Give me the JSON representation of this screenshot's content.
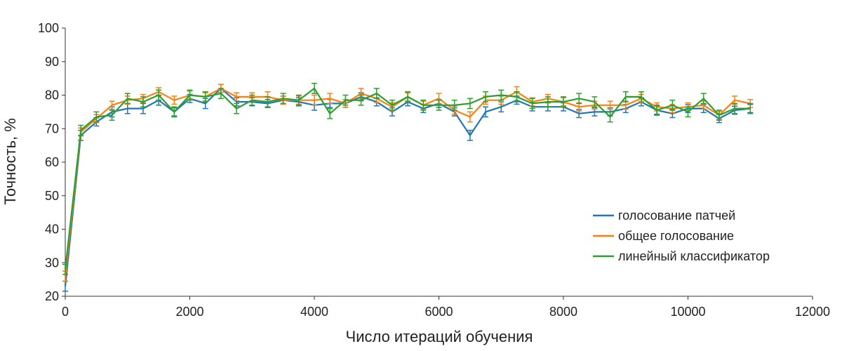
{
  "chart_data": {
    "type": "line",
    "title": "",
    "xlabel": "Число итераций обучения",
    "ylabel": "Точность, %",
    "xlim": [
      0,
      12000
    ],
    "ylim": [
      20,
      100
    ],
    "xticks": [
      0,
      2000,
      4000,
      6000,
      8000,
      10000,
      12000
    ],
    "yticks": [
      20,
      30,
      40,
      50,
      60,
      70,
      80,
      90,
      100
    ],
    "grid": false,
    "legend_position": "right",
    "error_bars": true,
    "x": [
      0,
      250,
      500,
      750,
      1000,
      1250,
      1500,
      1750,
      2000,
      2250,
      2500,
      2750,
      3000,
      3250,
      3500,
      3750,
      4000,
      4250,
      4500,
      4750,
      5000,
      5250,
      5500,
      5750,
      6000,
      6250,
      6500,
      6750,
      7000,
      7250,
      7500,
      7750,
      8000,
      8250,
      8500,
      8750,
      9000,
      9250,
      9500,
      9750,
      10000,
      10250,
      10500,
      10750,
      11000
    ],
    "series": [
      {
        "name": "голосование патчей",
        "color": "#1f77b4",
        "values": [
          23,
          68,
          72,
          75,
          76,
          76,
          78.5,
          75,
          79,
          77.5,
          82,
          78,
          78,
          77.5,
          78.5,
          78,
          77,
          77.5,
          77.5,
          79.5,
          78,
          75,
          78,
          76,
          77.5,
          75,
          68,
          75,
          76.5,
          78.5,
          76.5,
          76.5,
          76.5,
          74.5,
          75,
          75,
          76,
          78,
          75.5,
          74.5,
          76,
          76,
          73,
          75.5,
          76
        ],
        "errors": [
          1.5,
          1.5,
          1.2,
          1.5,
          1.5,
          1.5,
          1.5,
          1.2,
          1.2,
          1.5,
          1.2,
          1.2,
          1.2,
          1.2,
          1.2,
          1.2,
          1.5,
          1.2,
          1.2,
          1.2,
          1.2,
          1.2,
          1.2,
          1.2,
          1.2,
          1.2,
          1.5,
          1.5,
          1.5,
          1.2,
          1.2,
          1.2,
          1.2,
          1.2,
          1.2,
          1.2,
          1.2,
          1.2,
          1.2,
          1.2,
          1.2,
          1.2,
          1.2,
          1.2,
          1.2
        ]
      },
      {
        "name": "общее голосование",
        "color": "#ff7f0e",
        "values": [
          26,
          69,
          73,
          77,
          78.5,
          79,
          81,
          78.5,
          80,
          79.5,
          82,
          79.5,
          79.5,
          79.5,
          78.5,
          78.5,
          78.5,
          79,
          77.5,
          80.5,
          79,
          76.5,
          79.5,
          77,
          79,
          75.5,
          73.5,
          78.5,
          78.5,
          81,
          78,
          79,
          78,
          76.5,
          77,
          77,
          77,
          79,
          76.5,
          76,
          76.5,
          77,
          74,
          78.5,
          77.5
        ],
        "errors": [
          1.5,
          1.2,
          1.2,
          1.2,
          1.2,
          1.2,
          1.2,
          1.2,
          1.2,
          1.2,
          1.2,
          1.2,
          1.2,
          1.5,
          1.2,
          1.2,
          1.5,
          1.5,
          1.2,
          1.5,
          1.2,
          1.2,
          1.2,
          1.2,
          1.5,
          1.2,
          1.5,
          1.2,
          1.2,
          1.5,
          1.2,
          1.2,
          1.2,
          1.2,
          1.2,
          1.2,
          1.2,
          1.2,
          1.2,
          1.2,
          1.2,
          1.2,
          1.2,
          1.2,
          1.2
        ]
      },
      {
        "name": "линейный классификатор",
        "color": "#2ca02c",
        "values": [
          28,
          69.5,
          73.5,
          74,
          79,
          78,
          80,
          75,
          80,
          79.5,
          80.5,
          76,
          78.5,
          78,
          79,
          78.5,
          82,
          74.5,
          78.5,
          78.5,
          80.5,
          77,
          79.5,
          77,
          77,
          77,
          77.5,
          79.5,
          80,
          79.5,
          77.5,
          78,
          78,
          79,
          78,
          73.5,
          79.5,
          79.5,
          75.5,
          77,
          75,
          79,
          74,
          76,
          76
        ],
        "errors": [
          1.5,
          1.5,
          1.5,
          1.5,
          1.5,
          1.5,
          1.5,
          1.5,
          1.5,
          1.5,
          1.5,
          1.5,
          1.5,
          1.5,
          1.5,
          1.5,
          1.5,
          1.5,
          1.5,
          1.5,
          1.5,
          1.5,
          1.5,
          1.5,
          1.5,
          1.5,
          1.5,
          1.5,
          1.5,
          1.5,
          1.5,
          1.5,
          1.5,
          1.5,
          1.5,
          1.5,
          1.5,
          1.5,
          1.5,
          1.5,
          1.5,
          1.5,
          1.5,
          1.5,
          1.5
        ]
      }
    ]
  }
}
